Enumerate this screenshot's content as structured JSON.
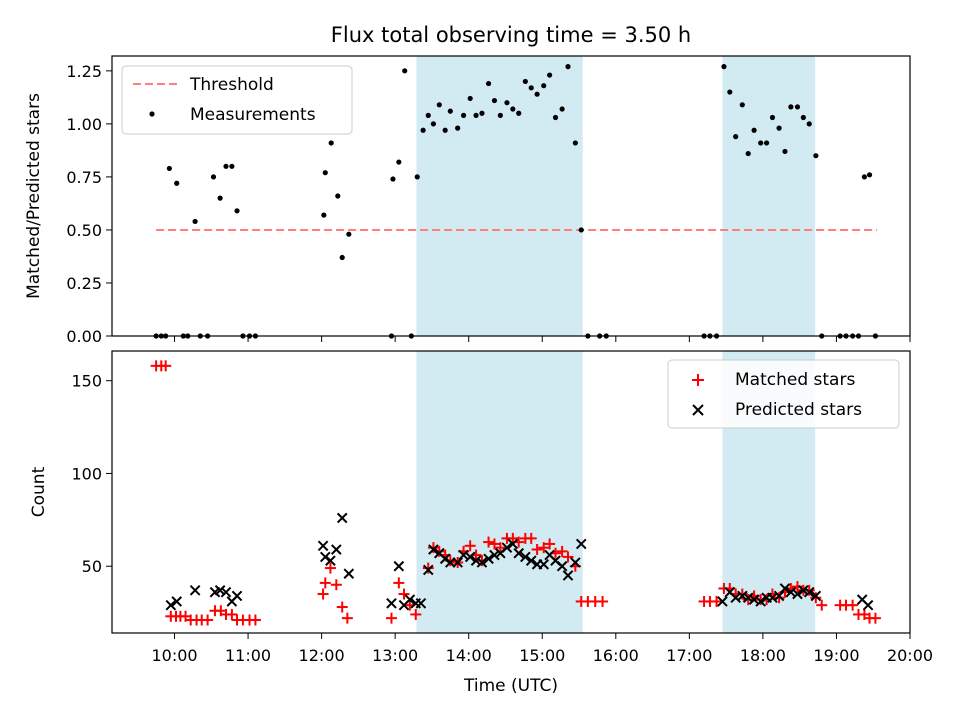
{
  "figure": {
    "title": "Flux total observing time = 3.50 h",
    "xlabel": "Time (UTC)",
    "xticks": [
      {
        "v": 10,
        "label": "10:00"
      },
      {
        "v": 11,
        "label": "11:00"
      },
      {
        "v": 12,
        "label": "12:00"
      },
      {
        "v": 13,
        "label": "13:00"
      },
      {
        "v": 14,
        "label": "14:00"
      },
      {
        "v": 15,
        "label": "15:00"
      },
      {
        "v": 16,
        "label": "16:00"
      },
      {
        "v": 17,
        "label": "17:00"
      },
      {
        "v": 18,
        "label": "18:00"
      },
      {
        "v": 19,
        "label": "19:00"
      },
      {
        "v": 20,
        "label": "20:00"
      }
    ],
    "xlim": [
      9.15,
      20.0
    ],
    "shaded_color": "#add8e6",
    "shaded_spans": [
      [
        13.29,
        15.55
      ],
      [
        17.45,
        18.71
      ]
    ]
  },
  "chart_data": [
    {
      "type": "scatter",
      "ylabel": "Matched/Predicted stars",
      "ylim": [
        0,
        1.32
      ],
      "yticks": [
        {
          "v": 0,
          "label": "0.00"
        },
        {
          "v": 0.25,
          "label": "0.25"
        },
        {
          "v": 0.5,
          "label": "0.50"
        },
        {
          "v": 0.75,
          "label": "0.75"
        },
        {
          "v": 1.0,
          "label": "1.00"
        },
        {
          "v": 1.25,
          "label": "1.25"
        }
      ],
      "legend": "top-left",
      "threshold": {
        "name": "Threshold",
        "value": 0.5,
        "x": [
          9.75,
          19.55
        ],
        "color": "#ff7f7f"
      },
      "series": [
        {
          "name": "Measurements",
          "color": "#000000",
          "points": [
            [
              9.75,
              0
            ],
            [
              9.82,
              0
            ],
            [
              9.88,
              0
            ],
            [
              9.93,
              0.79
            ],
            [
              10.03,
              0.72
            ],
            [
              10.12,
              0
            ],
            [
              10.18,
              0
            ],
            [
              10.28,
              0.54
            ],
            [
              10.35,
              0
            ],
            [
              10.45,
              0
            ],
            [
              10.53,
              0.75
            ],
            [
              10.62,
              0.65
            ],
            [
              10.7,
              0.8
            ],
            [
              10.78,
              0.8
            ],
            [
              10.85,
              0.59
            ],
            [
              10.93,
              0
            ],
            [
              11.02,
              0
            ],
            [
              11.1,
              0
            ],
            [
              12.03,
              0.57
            ],
            [
              12.05,
              0.77
            ],
            [
              12.13,
              0.91
            ],
            [
              12.22,
              0.66
            ],
            [
              12.28,
              0.37
            ],
            [
              12.37,
              0.48
            ],
            [
              12.95,
              0
            ],
            [
              12.97,
              0.74
            ],
            [
              13.05,
              0.82
            ],
            [
              13.13,
              1.25
            ],
            [
              13.22,
              0
            ],
            [
              13.3,
              0.75
            ],
            [
              13.38,
              0.97
            ],
            [
              13.45,
              1.04
            ],
            [
              13.52,
              1.0
            ],
            [
              13.6,
              1.09
            ],
            [
              13.68,
              0.97
            ],
            [
              13.75,
              1.06
            ],
            [
              13.85,
              0.98
            ],
            [
              13.93,
              1.04
            ],
            [
              14.02,
              1.12
            ],
            [
              14.1,
              1.04
            ],
            [
              14.18,
              1.05
            ],
            [
              14.27,
              1.19
            ],
            [
              14.35,
              1.11
            ],
            [
              14.43,
              1.04
            ],
            [
              14.52,
              1.1
            ],
            [
              14.6,
              1.07
            ],
            [
              14.68,
              1.05
            ],
            [
              14.77,
              1.2
            ],
            [
              14.85,
              1.17
            ],
            [
              14.93,
              1.14
            ],
            [
              15.02,
              1.18
            ],
            [
              15.1,
              1.23
            ],
            [
              15.18,
              1.03
            ],
            [
              15.27,
              1.07
            ],
            [
              15.35,
              1.27
            ],
            [
              15.45,
              0.91
            ],
            [
              15.53,
              0.5
            ],
            [
              15.62,
              0
            ],
            [
              15.78,
              0
            ],
            [
              15.87,
              0
            ],
            [
              17.2,
              0
            ],
            [
              17.28,
              0
            ],
            [
              17.37,
              0
            ],
            [
              17.47,
              1.27
            ],
            [
              17.55,
              1.15
            ],
            [
              17.63,
              0.94
            ],
            [
              17.72,
              1.09
            ],
            [
              17.8,
              0.86
            ],
            [
              17.88,
              0.97
            ],
            [
              17.97,
              0.91
            ],
            [
              18.05,
              0.91
            ],
            [
              18.13,
              1.03
            ],
            [
              18.22,
              0.98
            ],
            [
              18.3,
              0.87
            ],
            [
              18.38,
              1.08
            ],
            [
              18.47,
              1.08
            ],
            [
              18.55,
              1.03
            ],
            [
              18.63,
              1.0
            ],
            [
              18.72,
              0.85
            ],
            [
              18.8,
              0
            ],
            [
              19.05,
              0
            ],
            [
              19.13,
              0
            ],
            [
              19.22,
              0
            ],
            [
              19.3,
              0
            ],
            [
              19.38,
              0.75
            ],
            [
              19.45,
              0.76
            ],
            [
              19.53,
              0
            ]
          ]
        }
      ]
    },
    {
      "type": "scatter",
      "ylabel": "Count",
      "ylim": [
        14,
        166
      ],
      "yticks": [
        {
          "v": 50,
          "label": "50"
        },
        {
          "v": 100,
          "label": "100"
        },
        {
          "v": 150,
          "label": "150"
        }
      ],
      "legend": "top-right",
      "series": [
        {
          "name": "Matched stars",
          "marker": "plus",
          "color": "#ff0000",
          "points": [
            [
              9.75,
              158
            ],
            [
              9.82,
              158
            ],
            [
              9.88,
              158
            ],
            [
              9.95,
              23
            ],
            [
              10.02,
              23
            ],
            [
              10.08,
              23
            ],
            [
              10.15,
              23
            ],
            [
              10.22,
              21
            ],
            [
              10.3,
              21
            ],
            [
              10.37,
              21
            ],
            [
              10.45,
              21
            ],
            [
              10.55,
              26
            ],
            [
              10.63,
              26
            ],
            [
              10.7,
              24
            ],
            [
              10.78,
              24
            ],
            [
              10.85,
              21
            ],
            [
              10.93,
              21
            ],
            [
              11.02,
              21
            ],
            [
              11.1,
              21
            ],
            [
              12.02,
              35
            ],
            [
              12.05,
              41
            ],
            [
              12.12,
              49
            ],
            [
              12.2,
              40
            ],
            [
              12.28,
              28
            ],
            [
              12.35,
              22
            ],
            [
              12.95,
              22
            ],
            [
              13.05,
              41
            ],
            [
              13.12,
              35
            ],
            [
              13.2,
              29
            ],
            [
              13.28,
              24
            ],
            [
              13.45,
              49
            ],
            [
              13.52,
              60
            ],
            [
              13.6,
              58
            ],
            [
              13.68,
              56
            ],
            [
              13.75,
              53
            ],
            [
              13.85,
              52
            ],
            [
              13.93,
              58
            ],
            [
              14.02,
              61
            ],
            [
              14.1,
              56
            ],
            [
              14.18,
              53
            ],
            [
              14.27,
              63
            ],
            [
              14.35,
              62
            ],
            [
              14.43,
              60
            ],
            [
              14.52,
              65
            ],
            [
              14.6,
              65
            ],
            [
              14.68,
              63
            ],
            [
              14.77,
              65
            ],
            [
              14.85,
              65
            ],
            [
              14.93,
              59
            ],
            [
              15.02,
              60
            ],
            [
              15.1,
              62
            ],
            [
              15.18,
              57
            ],
            [
              15.27,
              58
            ],
            [
              15.35,
              55
            ],
            [
              15.45,
              50
            ],
            [
              15.53,
              31
            ],
            [
              15.62,
              31
            ],
            [
              15.72,
              31
            ],
            [
              15.82,
              31
            ],
            [
              17.2,
              31
            ],
            [
              17.28,
              31
            ],
            [
              17.37,
              31
            ],
            [
              17.47,
              38
            ],
            [
              17.55,
              38
            ],
            [
              17.63,
              35
            ],
            [
              17.72,
              35
            ],
            [
              17.8,
              32
            ],
            [
              17.88,
              34
            ],
            [
              17.97,
              32
            ],
            [
              18.05,
              32
            ],
            [
              18.13,
              35
            ],
            [
              18.22,
              33
            ],
            [
              18.3,
              36
            ],
            [
              18.38,
              38
            ],
            [
              18.47,
              39
            ],
            [
              18.55,
              37
            ],
            [
              18.63,
              37
            ],
            [
              18.72,
              33
            ],
            [
              18.8,
              29
            ],
            [
              19.05,
              29
            ],
            [
              19.13,
              29
            ],
            [
              19.22,
              29
            ],
            [
              19.3,
              24
            ],
            [
              19.38,
              24
            ],
            [
              19.45,
              22
            ],
            [
              19.53,
              22
            ]
          ]
        },
        {
          "name": "Predicted stars",
          "marker": "x",
          "color": "#000000",
          "points": [
            [
              9.95,
              29
            ],
            [
              10.03,
              31
            ],
            [
              10.28,
              37
            ],
            [
              10.55,
              36
            ],
            [
              10.62,
              37
            ],
            [
              10.7,
              36
            ],
            [
              10.78,
              31
            ],
            [
              10.85,
              34
            ],
            [
              12.02,
              61
            ],
            [
              12.05,
              55
            ],
            [
              12.12,
              53
            ],
            [
              12.2,
              59
            ],
            [
              12.28,
              76
            ],
            [
              12.37,
              46
            ],
            [
              12.95,
              30
            ],
            [
              13.05,
              50
            ],
            [
              13.12,
              29
            ],
            [
              13.2,
              32
            ],
            [
              13.28,
              30
            ],
            [
              13.35,
              30
            ],
            [
              13.45,
              48
            ],
            [
              13.52,
              59
            ],
            [
              13.6,
              57
            ],
            [
              13.68,
              54
            ],
            [
              13.75,
              52
            ],
            [
              13.85,
              52
            ],
            [
              13.93,
              56
            ],
            [
              14.02,
              55
            ],
            [
              14.1,
              53
            ],
            [
              14.18,
              52
            ],
            [
              14.27,
              54
            ],
            [
              14.35,
              56
            ],
            [
              14.43,
              57
            ],
            [
              14.52,
              60
            ],
            [
              14.6,
              62
            ],
            [
              14.68,
              57
            ],
            [
              14.77,
              55
            ],
            [
              14.85,
              53
            ],
            [
              14.93,
              51
            ],
            [
              15.02,
              51
            ],
            [
              15.1,
              56
            ],
            [
              15.18,
              53
            ],
            [
              15.27,
              50
            ],
            [
              15.35,
              45
            ],
            [
              15.45,
              52
            ],
            [
              15.53,
              62
            ],
            [
              17.45,
              31
            ],
            [
              17.55,
              36
            ],
            [
              17.63,
              33
            ],
            [
              17.72,
              34
            ],
            [
              17.8,
              33
            ],
            [
              17.88,
              32
            ],
            [
              17.97,
              31
            ],
            [
              18.05,
              33
            ],
            [
              18.13,
              33
            ],
            [
              18.22,
              34
            ],
            [
              18.3,
              38
            ],
            [
              18.38,
              36
            ],
            [
              18.47,
              35
            ],
            [
              18.55,
              37
            ],
            [
              18.63,
              36
            ],
            [
              18.72,
              34
            ],
            [
              19.35,
              32
            ],
            [
              19.43,
              29
            ]
          ]
        }
      ]
    }
  ]
}
